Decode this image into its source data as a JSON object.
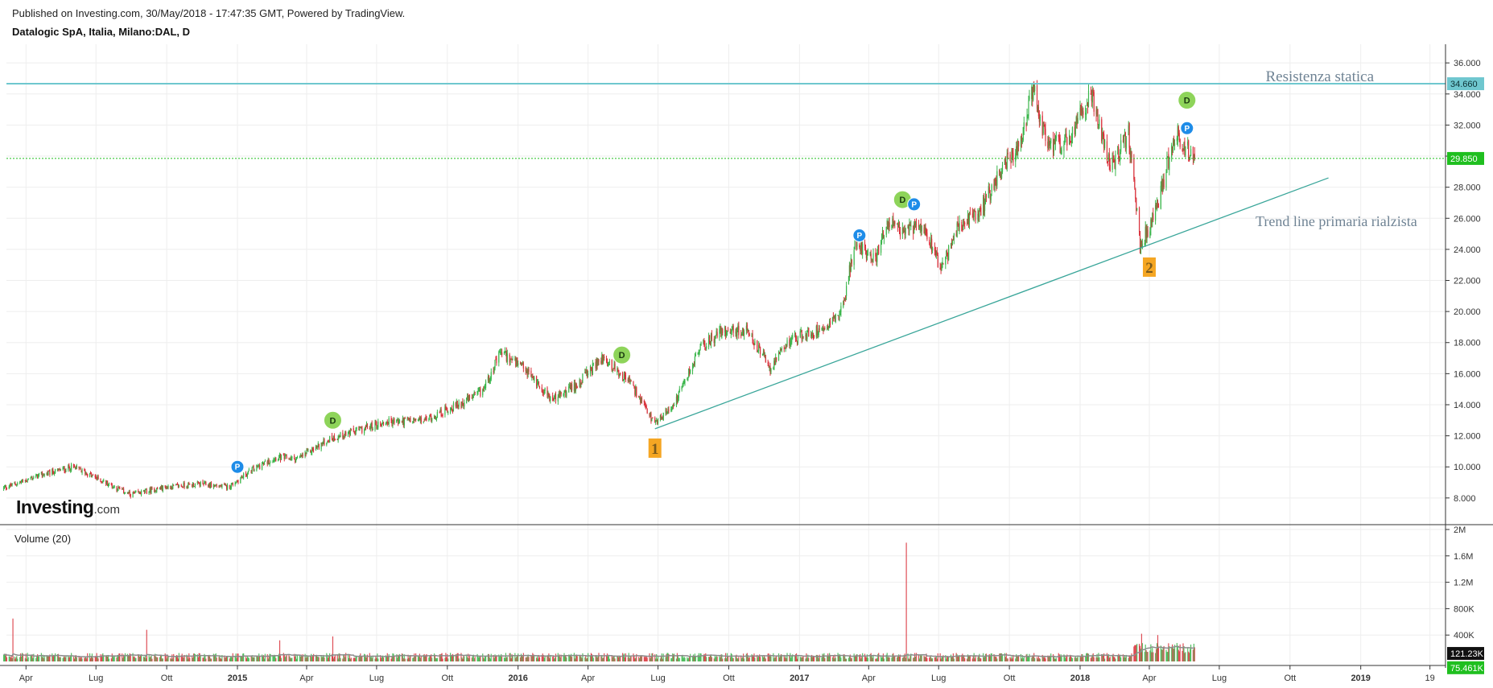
{
  "header": {
    "published": "Published on Investing.com, 30/May/2018 - 17:47:35 GMT, Powered by TradingView.",
    "symbol": "Datalogic SpA, Italia, Milano:DAL, D"
  },
  "logo": {
    "brand": "Investing",
    "suffix": ".com"
  },
  "volume_label": "Volume (20)",
  "colors": {
    "up": "#39b54a",
    "down": "#d9303a",
    "resistance": "#6fc7cf",
    "trendline": "#3aa69a",
    "current_price": "#1fbf1f",
    "dividend": "#8ed45a",
    "p_marker": "#1e8ce8",
    "pivot_label": "#f5a623",
    "volume_ma": "#8c8c8c",
    "grid": "#eeeeee"
  },
  "chart_data": {
    "type": "candlestick",
    "title": "Datalogic SpA, Italia, Milano:DAL, D",
    "price_axis": {
      "ylim": [
        6800,
        37200
      ],
      "ticks": [
        8000,
        10000,
        12000,
        14000,
        16000,
        18000,
        20000,
        22000,
        24000,
        26000,
        28000,
        30000,
        32000,
        34000,
        36000
      ],
      "tick_labels": [
        "8.000",
        "10.000",
        "12.000",
        "14.000",
        "16.000",
        "18.000",
        "20.000",
        "22.000",
        "24.000",
        "26.000",
        "28.000",
        "30.000",
        "32.000",
        "34.000",
        "36.000"
      ]
    },
    "time_axis": {
      "range": [
        "2014-03-01",
        "2019-07-31"
      ],
      "ticks": [
        {
          "date": "2014-04-01",
          "label": "Apr",
          "bold": false
        },
        {
          "date": "2014-07-01",
          "label": "Lug",
          "bold": false
        },
        {
          "date": "2014-10-01",
          "label": "Ott",
          "bold": false
        },
        {
          "date": "2015-01-01",
          "label": "2015",
          "bold": true
        },
        {
          "date": "2015-04-01",
          "label": "Apr",
          "bold": false
        },
        {
          "date": "2015-07-01",
          "label": "Lug",
          "bold": false
        },
        {
          "date": "2015-10-01",
          "label": "Ott",
          "bold": false
        },
        {
          "date": "2016-01-01",
          "label": "2016",
          "bold": true
        },
        {
          "date": "2016-04-01",
          "label": "Apr",
          "bold": false
        },
        {
          "date": "2016-07-01",
          "label": "Lug",
          "bold": false
        },
        {
          "date": "2016-10-01",
          "label": "Ott",
          "bold": false
        },
        {
          "date": "2017-01-01",
          "label": "2017",
          "bold": true
        },
        {
          "date": "2017-04-01",
          "label": "Apr",
          "bold": false
        },
        {
          "date": "2017-07-01",
          "label": "Lug",
          "bold": false
        },
        {
          "date": "2017-10-01",
          "label": "Ott",
          "bold": false
        },
        {
          "date": "2018-01-01",
          "label": "2018",
          "bold": true
        },
        {
          "date": "2018-04-01",
          "label": "Apr",
          "bold": false
        },
        {
          "date": "2018-07-01",
          "label": "Lug",
          "bold": false
        },
        {
          "date": "2018-10-01",
          "label": "Ott",
          "bold": false
        },
        {
          "date": "2019-01-01",
          "label": "2019",
          "bold": true
        },
        {
          "date": "2019-04-01",
          "label": "19",
          "bold": false
        }
      ]
    },
    "price_path": [
      [
        "2014-03-01",
        8600
      ],
      [
        "2014-04-15",
        9400
      ],
      [
        "2014-06-01",
        10000
      ],
      [
        "2014-07-01",
        9300
      ],
      [
        "2014-08-15",
        8200
      ],
      [
        "2014-10-01",
        8700
      ],
      [
        "2014-11-15",
        8900
      ],
      [
        "2014-12-20",
        8700
      ],
      [
        "2015-01-20",
        9800
      ],
      [
        "2015-02-20",
        10600
      ],
      [
        "2015-03-20",
        10500
      ],
      [
        "2015-05-01",
        11800
      ],
      [
        "2015-06-10",
        12400
      ],
      [
        "2015-07-15",
        12900
      ],
      [
        "2015-09-01",
        13000
      ],
      [
        "2015-10-15",
        14000
      ],
      [
        "2015-11-15",
        14800
      ],
      [
        "2015-12-10",
        17400
      ],
      [
        "2016-01-15",
        16000
      ],
      [
        "2016-02-15",
        14300
      ],
      [
        "2016-03-15",
        15200
      ],
      [
        "2016-04-20",
        17000
      ],
      [
        "2016-05-25",
        15500
      ],
      [
        "2016-06-27",
        12700
      ],
      [
        "2016-07-25",
        14300
      ],
      [
        "2016-08-25",
        17700
      ],
      [
        "2016-09-25",
        18800
      ],
      [
        "2016-10-25",
        18700
      ],
      [
        "2016-11-25",
        16300
      ],
      [
        "2016-12-20",
        18200
      ],
      [
        "2017-01-25",
        18800
      ],
      [
        "2017-02-25",
        20000
      ],
      [
        "2017-03-15",
        24600
      ],
      [
        "2017-04-10",
        23300
      ],
      [
        "2017-04-25",
        25800
      ],
      [
        "2017-05-15",
        25000
      ],
      [
        "2017-06-10",
        25800
      ],
      [
        "2017-07-05",
        22700
      ],
      [
        "2017-07-25",
        25300
      ],
      [
        "2017-08-25",
        26500
      ],
      [
        "2017-09-20",
        29200
      ],
      [
        "2017-10-15",
        30500
      ],
      [
        "2017-11-01",
        34300
      ],
      [
        "2017-11-20",
        30500
      ],
      [
        "2017-12-20",
        31000
      ],
      [
        "2018-01-15",
        34300
      ],
      [
        "2018-02-10",
        29200
      ],
      [
        "2018-03-05",
        31500
      ],
      [
        "2018-03-20",
        24200
      ],
      [
        "2018-04-10",
        26500
      ],
      [
        "2018-04-25",
        29500
      ],
      [
        "2018-05-05",
        31600
      ],
      [
        "2018-05-20",
        30400
      ],
      [
        "2018-05-30",
        29850
      ]
    ],
    "volume_axis": {
      "ylim": [
        0,
        2000000
      ],
      "ticks": [
        400000,
        800000,
        1200000,
        1600000,
        2000000
      ],
      "tick_labels": [
        "400K",
        "800K",
        "1.2M",
        "1.6M",
        "2M"
      ]
    },
    "volume_spikes": [
      [
        "2014-03-15",
        650000
      ],
      [
        "2014-09-05",
        480000
      ],
      [
        "2015-02-25",
        320000
      ],
      [
        "2015-05-05",
        380000
      ],
      [
        "2017-05-20",
        1800000
      ],
      [
        "2018-03-22",
        420000
      ],
      [
        "2018-04-12",
        400000
      ]
    ],
    "volume_current": "121.23K",
    "volume_ma_current": "75.461K",
    "resistance": {
      "value": 34660,
      "label": "34.660",
      "annotation": "Resistenza statica"
    },
    "current_price": {
      "value": 29850,
      "label": "29.850"
    },
    "trendline": {
      "from": [
        "2016-06-27",
        12450
      ],
      "to": [
        "2018-11-20",
        28600
      ],
      "annotation": "Trend line primaria rialzista"
    },
    "pivots": [
      {
        "date": "2016-06-27",
        "value": 12450,
        "label": "1"
      },
      {
        "date": "2018-04-01",
        "value": 24100,
        "label": "2"
      }
    ],
    "markers": [
      {
        "type": "P",
        "date": "2015-01-01",
        "value": 10000
      },
      {
        "type": "D",
        "date": "2015-05-05",
        "value": 13000
      },
      {
        "type": "D",
        "date": "2016-05-15",
        "value": 17200
      },
      {
        "type": "P",
        "date": "2017-03-20",
        "value": 24900
      },
      {
        "type": "D",
        "date": "2017-05-15",
        "value": 27200
      },
      {
        "type": "P",
        "date": "2017-05-30",
        "value": 26900
      },
      {
        "type": "D",
        "date": "2018-05-20",
        "value": 33600
      },
      {
        "type": "P",
        "date": "2018-05-20",
        "value": 31800
      }
    ]
  }
}
